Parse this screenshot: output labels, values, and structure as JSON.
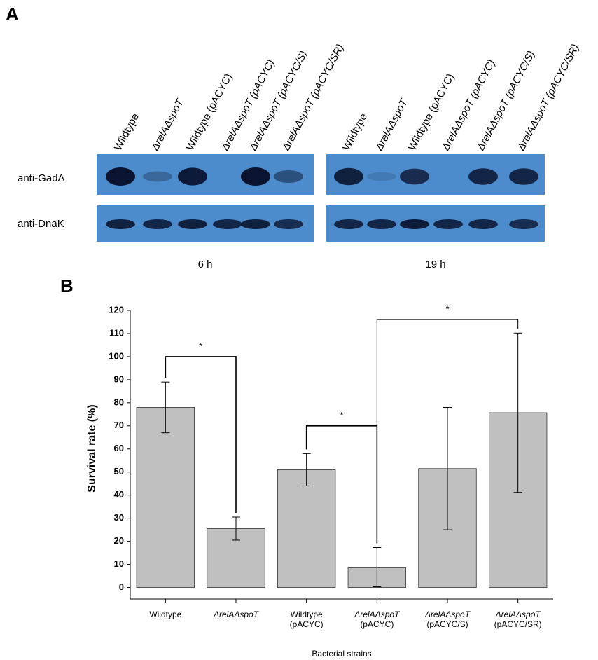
{
  "panel_labels": [
    "A",
    "B"
  ],
  "blot": {
    "rows": [
      "anti-GadA",
      "anti-DnaK"
    ],
    "panels": [
      {
        "time": "6 h",
        "lanes": [
          "Wildtype",
          "ΔrelAΔspoT",
          "Wildtype (pACYC)",
          "ΔrelAΔspoT (pACYC)",
          "ΔrelAΔspoT (pACYC/S)",
          "ΔrelAΔspoT (pACYC/SR)"
        ]
      },
      {
        "time": "19 h",
        "lanes": [
          "Wildtype",
          "ΔrelAΔspoT",
          "Wildtype (pACYC)",
          "ΔrelAΔspoT (pACYC)",
          "ΔrelAΔspoT (pACYC/S)",
          "ΔrelAΔspoT (pACYC/SR)"
        ]
      }
    ]
  },
  "chart_data": {
    "type": "bar",
    "categories": [
      [
        "Wildtype"
      ],
      [
        "ΔrelAΔspoT"
      ],
      [
        "Wildtype",
        "(pACYC)"
      ],
      [
        "ΔrelAΔspoT",
        "(pACYC)"
      ],
      [
        "ΔrelAΔspoT",
        "(pACYC/S)"
      ],
      [
        "ΔrelAΔspoT",
        "(pACYC/SR)"
      ]
    ],
    "values": [
      78,
      25.5,
      51,
      8.8,
      51.5,
      75.7
    ],
    "errors": [
      11,
      5,
      7,
      8.5,
      26.5,
      34.5
    ],
    "color": "#c0c0c0",
    "ylim": [
      -5,
      120
    ],
    "yticks": [
      0,
      10,
      20,
      30,
      40,
      50,
      60,
      70,
      80,
      90,
      100,
      110,
      120
    ],
    "y_label": "Survival rate (%)",
    "x_label": "Bacterial strains",
    "significance": [
      {
        "from": 0,
        "to": 1,
        "y": 100,
        "label": "*"
      },
      {
        "from": 2,
        "to": 3,
        "y": 70,
        "label": "*"
      },
      {
        "from": 3,
        "to": 5,
        "y": 116,
        "label": "*"
      }
    ]
  }
}
